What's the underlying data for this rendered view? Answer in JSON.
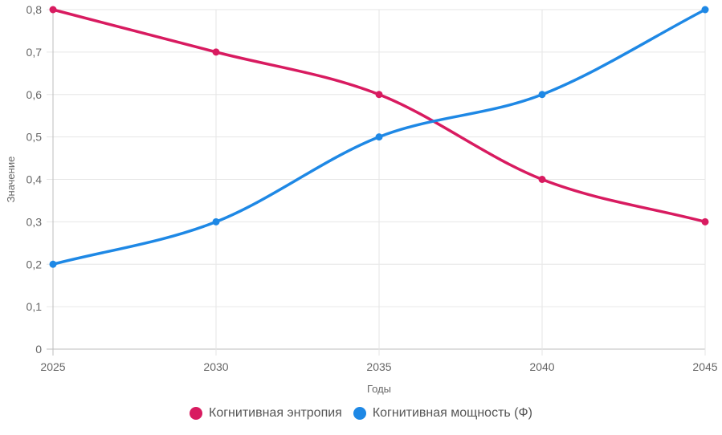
{
  "chart_data": {
    "type": "line",
    "categories": [
      "2025",
      "2030",
      "2035",
      "2040",
      "2045"
    ],
    "series": [
      {
        "name": "Когнитивная энтропия",
        "values": [
          0.8,
          0.7,
          0.6,
          0.4,
          0.3
        ],
        "color": "#d81b60"
      },
      {
        "name": "Когнитивная мощность (Ф)",
        "values": [
          0.2,
          0.3,
          0.5,
          0.6,
          0.8
        ],
        "color": "#1e88e5"
      }
    ],
    "xlabel": "Годы",
    "ylabel": "Значение",
    "ylim": [
      0,
      0.8
    ],
    "yticks": [
      "0",
      "0,1",
      "0,2",
      "0,3",
      "0,4",
      "0,5",
      "0,6",
      "0,7",
      "0,8"
    ],
    "grid": true,
    "legend_position": "bottom"
  }
}
